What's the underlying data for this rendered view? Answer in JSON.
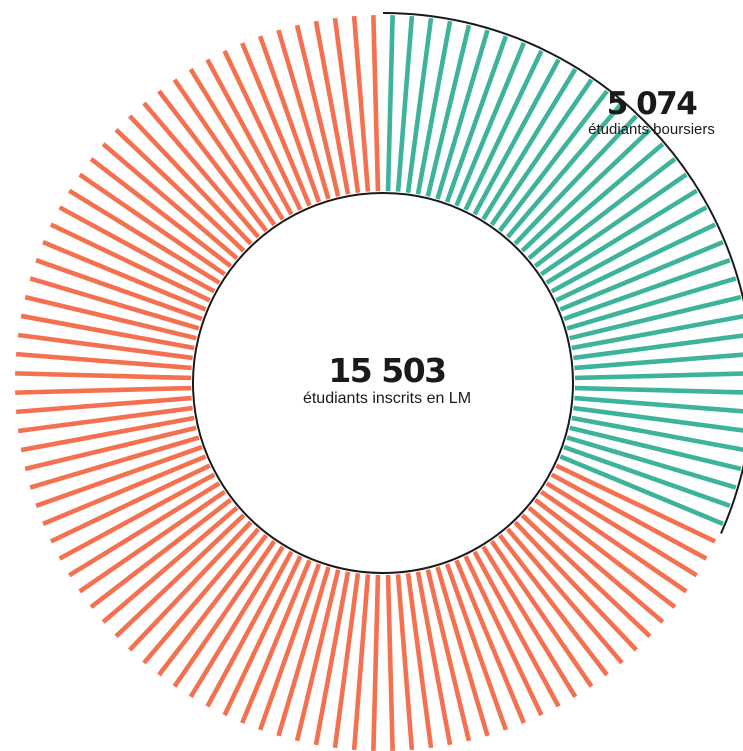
{
  "chart_data": {
    "type": "radial-bar",
    "total": {
      "value": "15 503",
      "label": "étudiants inscrits en LM"
    },
    "subset": {
      "value": "5 074",
      "label": "étudiants boursiers"
    },
    "bar_count": 120,
    "highlighted_bar_count": 38,
    "colors": {
      "highlighted": "#3cb39a",
      "rest": "#f4704f",
      "outline": "#1a1a1a"
    }
  }
}
